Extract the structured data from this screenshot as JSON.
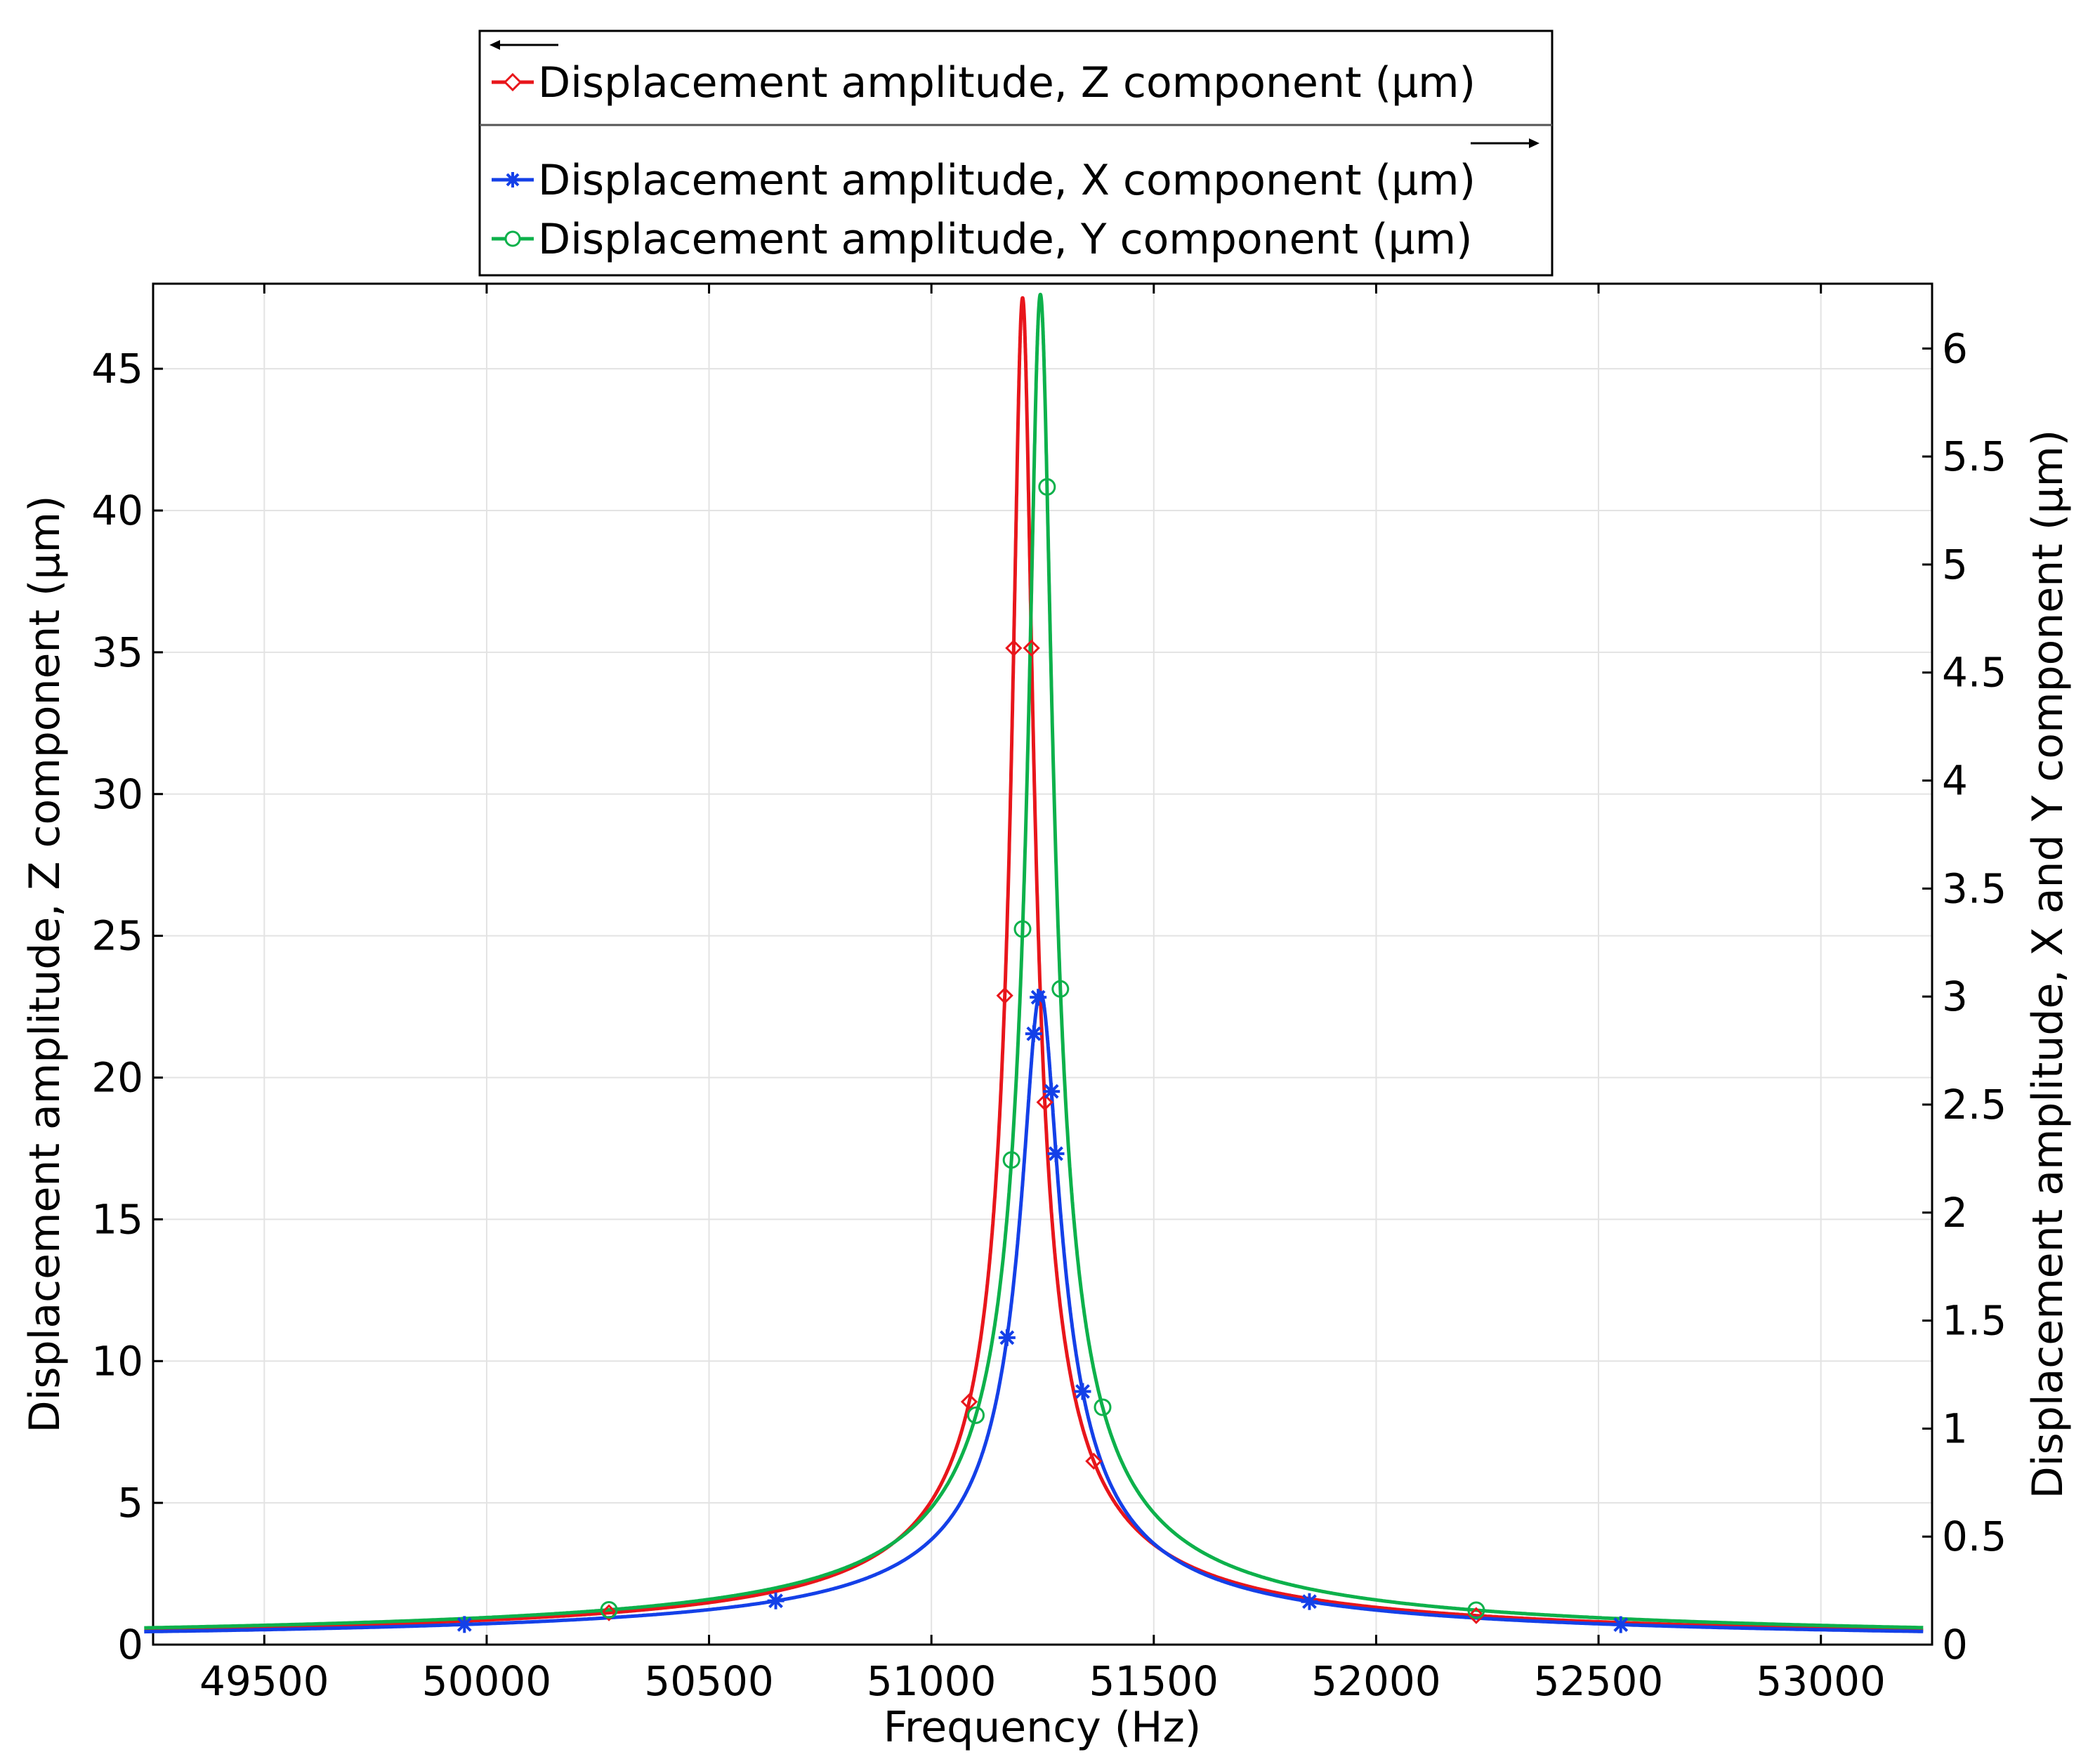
{
  "chart_data": {
    "type": "line",
    "xlabel": "Frequency (Hz)",
    "ylabel_left": "Displacement amplitude, Z component (µm)",
    "ylabel_right": "Displacement amplitude, X and Y component (µm)",
    "xlim": [
      49250,
      53250
    ],
    "ylim_left": [
      0,
      48
    ],
    "ylim_right": [
      0,
      6.3
    ],
    "x_ticks": [
      "49500",
      "50000",
      "50500",
      "51000",
      "51500",
      "52000",
      "52500",
      "53000"
    ],
    "y_ticks_left": [
      "0",
      "5",
      "10",
      "15",
      "20",
      "25",
      "30",
      "35",
      "40",
      "45"
    ],
    "y_ticks_right": [
      "0",
      "0.5",
      "1",
      "1.5",
      "2",
      "2.5",
      "3",
      "3.5",
      "4",
      "4.5",
      "5",
      "5.5",
      "6"
    ],
    "grid": true,
    "legend_position": "top-center",
    "series": [
      {
        "name": "Displacement amplitude, Z component (µm)",
        "axis": "left",
        "color": "#e8161b",
        "marker": "diamond",
        "resonance_hz": 51205,
        "peak": 47.5,
        "half_width_hz": 22,
        "markers_x": [
          50275,
          51085,
          51165,
          51185,
          51225,
          51255,
          51365,
          52225
        ]
      },
      {
        "name": "Displacement amplitude, X component (µm)",
        "axis": "right",
        "color": "#1440e8",
        "marker": "star",
        "resonance_hz": 51245,
        "peak": 3.02,
        "half_width_hz": 40,
        "markers_x": [
          49950,
          50650,
          51170,
          51230,
          51240,
          51270,
          51280,
          51340,
          51850,
          52550
        ]
      },
      {
        "name": "Displacement amplitude, Y component (µm)",
        "axis": "right",
        "color": "#0db14b",
        "marker": "circle",
        "resonance_hz": 51245,
        "peak": 6.25,
        "half_width_hz": 25,
        "markers_x": [
          50275,
          51100,
          51180,
          51205,
          51260,
          51290,
          51385,
          52225
        ]
      }
    ]
  }
}
